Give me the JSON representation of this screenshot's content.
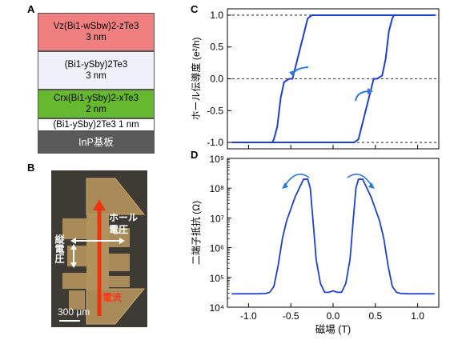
{
  "panels": {
    "a": "A",
    "b": "B",
    "c": "C",
    "d": "D"
  },
  "stack": {
    "l1": {
      "line1": "Vz(Bi1-wSbw)2-zTe3",
      "line2": "3 nm",
      "color": "#f08080"
    },
    "l2": {
      "line1": "(Bi1-ySby)2Te3",
      "line2": "3 nm",
      "color": "#eef0fa"
    },
    "l3": {
      "line1": "Crx(Bi1-ySby)2-xTe3",
      "line2": "2 nm",
      "color": "#66b82e"
    },
    "l4": {
      "line1": "(Bi1-ySby)2Te3  1 nm",
      "color": "#ffffff"
    },
    "l5": {
      "line1": "InP基板",
      "color": "#5a5a5a"
    }
  },
  "micrograph": {
    "hall_label_1": "ホール",
    "hall_label_2": "電圧",
    "vert_label": "縦電圧",
    "current_label": "電流",
    "scale_bar": "300 μm"
  },
  "chart_data": [
    {
      "panel": "C",
      "type": "line",
      "ylabel": "ホール伝導度 (e²/h)",
      "xlim": [
        -1.25,
        1.25
      ],
      "ylim": [
        -1.1,
        1.1
      ],
      "yticks": [
        "1.0",
        "0.5",
        "0.0",
        "-0.5",
        "-1.0"
      ],
      "series": [
        {
          "sweep": "down",
          "x": [
            1.2,
            -0.25,
            -0.3,
            -0.48,
            -0.52,
            -0.58,
            -0.62,
            -0.66,
            -0.7,
            -0.72,
            -1.2
          ],
          "y": [
            1.0,
            1.0,
            0.95,
            0.0,
            0.0,
            -0.05,
            -0.3,
            -0.75,
            -0.95,
            -1.0,
            -1.0
          ]
        },
        {
          "sweep": "up",
          "x": [
            -1.2,
            0.25,
            0.3,
            0.48,
            0.52,
            0.58,
            0.62,
            0.66,
            0.7,
            0.72,
            1.2
          ],
          "y": [
            -1.0,
            -1.0,
            -0.95,
            0.0,
            0.0,
            0.05,
            0.3,
            0.75,
            0.95,
            1.0,
            1.0
          ]
        }
      ]
    },
    {
      "panel": "D",
      "type": "line",
      "ylabel": "二端子抵抗 (Ω)",
      "xlabel": "磁場 (T)",
      "xlim": [
        -1.25,
        1.25
      ],
      "ylim_log10": [
        4,
        9
      ],
      "xticks": [
        "-1.0",
        "-0.5",
        "0.0",
        "0.5",
        "1.0"
      ],
      "yticks": [
        "10⁹",
        "10⁸",
        "10⁷",
        "10⁶",
        "10⁵",
        "10⁴"
      ],
      "series": [
        {
          "x": [
            -1.2,
            -0.9,
            -0.8,
            -0.75,
            -0.7,
            -0.65,
            -0.6,
            -0.55,
            -0.5,
            -0.45,
            -0.4,
            -0.35,
            -0.3,
            -0.27,
            -0.24,
            -0.2,
            -0.15,
            -0.1,
            -0.05,
            0.0,
            0.05,
            0.1,
            0.15,
            0.2,
            0.24,
            0.27,
            0.3,
            0.35,
            0.4,
            0.45,
            0.5,
            0.55,
            0.6,
            0.65,
            0.7,
            0.75,
            0.8,
            0.9,
            1.2
          ],
          "log10y": [
            4.45,
            4.45,
            4.46,
            4.5,
            4.7,
            5.4,
            6.3,
            6.9,
            7.3,
            7.7,
            8.0,
            8.3,
            8.3,
            8.0,
            7.0,
            5.6,
            4.8,
            4.5,
            4.5,
            4.55,
            4.5,
            4.5,
            4.8,
            5.6,
            7.0,
            8.0,
            8.3,
            8.3,
            8.0,
            7.7,
            7.3,
            6.9,
            6.3,
            5.4,
            4.7,
            4.5,
            4.46,
            4.45,
            4.45
          ]
        }
      ]
    }
  ]
}
